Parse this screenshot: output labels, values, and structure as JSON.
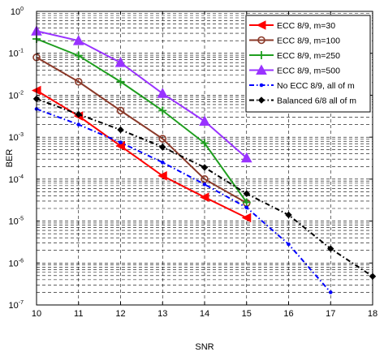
{
  "chart_data": {
    "type": "line",
    "xlabel": "SNR",
    "ylabel": "BER",
    "xlim": [
      10,
      18
    ],
    "ylim": [
      1e-07,
      1
    ],
    "yscale": "log",
    "x_ticks": [
      10,
      11,
      12,
      13,
      14,
      15,
      16,
      17,
      18
    ],
    "y_tick_exponents": [
      0,
      -1,
      -2,
      -3,
      -4,
      -5,
      -6,
      -7
    ],
    "y_tick_base": "10",
    "grid": "dashed, major and minor",
    "legend_position": "top-right",
    "series": [
      {
        "name": "ECC 8/9, m=30",
        "color": "#ff0000",
        "line": "solid",
        "marker": "left-triangle",
        "x": [
          10,
          11,
          12,
          13,
          14,
          15
        ],
        "y": [
          0.013,
          0.0032,
          0.00062,
          0.00012,
          3.7e-05,
          1.2e-05
        ]
      },
      {
        "name": "ECC 8/9, m=100",
        "color": "#8b3a2a",
        "line": "solid",
        "marker": "circle",
        "x": [
          10,
          11,
          12,
          13,
          14,
          15
        ],
        "y": [
          0.08,
          0.021,
          0.0043,
          0.00092,
          0.0001,
          2.7e-05
        ]
      },
      {
        "name": "ECC 8/9, m=250",
        "color": "#1f9e1f",
        "line": "solid",
        "marker": "plus",
        "x": [
          10,
          11,
          12,
          13,
          14,
          15
        ],
        "y": [
          0.22,
          0.088,
          0.021,
          0.0043,
          0.00072,
          2.8e-05
        ]
      },
      {
        "name": "ECC 8/9, m=500",
        "color": "#9933ff",
        "line": "solid",
        "marker": "up-triangle",
        "x": [
          10,
          11,
          12,
          13,
          14,
          15
        ],
        "y": [
          0.34,
          0.2,
          0.06,
          0.011,
          0.0024,
          0.00032
        ]
      },
      {
        "name": "No ECC 8/9, all of m",
        "color": "#0000ff",
        "line": "dash-dot",
        "marker": "point",
        "x": [
          10,
          11,
          12,
          13,
          14,
          15,
          16,
          17
        ],
        "y": [
          0.0047,
          0.002,
          0.00075,
          0.00025,
          7.5e-05,
          2.1e-05,
          2.8e-06,
          2e-07
        ]
      },
      {
        "name": "Balanced 6/8 all of m",
        "color": "#000000",
        "line": "dash-dot",
        "marker": "diamond",
        "x": [
          10,
          11,
          12,
          13,
          14,
          15,
          16,
          17,
          18
        ],
        "y": [
          0.0082,
          0.0035,
          0.0015,
          0.00058,
          0.00019,
          4.5e-05,
          1.4e-05,
          2.2e-06,
          4.8e-07
        ]
      }
    ]
  }
}
